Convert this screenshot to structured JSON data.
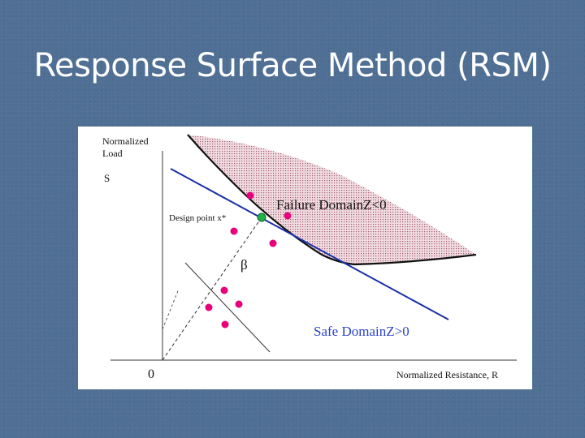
{
  "slide": {
    "title": "Response Surface Method (RSM)"
  },
  "diagram": {
    "y_axis_label_line1": "Normalized",
    "y_axis_label_line2": "Load",
    "y_axis_symbol": "S",
    "x_axis_label": "Normalized Resistance, R",
    "origin_label": "0",
    "design_point_label": "Design point x*",
    "beta_label": "β",
    "failure_domain_label": "Failure DomainZ<0",
    "safe_domain_label": "Safe DomainZ>0",
    "colors": {
      "background": "#4f6f94",
      "samples": "#e8007a",
      "design_point": "#22b04a",
      "limit_line": "#1a2fa8",
      "safe_text": "#2b43c8",
      "failure_fill": "#e6b8c4"
    }
  }
}
